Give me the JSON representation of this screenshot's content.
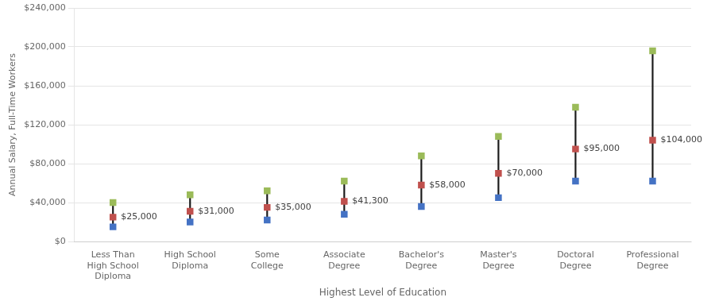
{
  "chart_data": {
    "type": "scatter",
    "categories": [
      "Less Than\nHigh School\nDiploma",
      "High School\nDiploma",
      "Some\nCollege",
      "Associate\nDegree",
      "Bachelor's\nDegree",
      "Master's\nDegree",
      "Doctoral\nDegree",
      "Professional\nDegree"
    ],
    "series": [
      {
        "color": "#9BBB59",
        "marker": "square",
        "values": [
          40000,
          48000,
          52000,
          62000,
          88000,
          108000,
          138000,
          196000
        ]
      },
      {
        "color": "#C0504D",
        "marker": "square",
        "values": [
          25000,
          31000,
          35000,
          41300,
          58000,
          70000,
          95000,
          104000
        ],
        "data_labels": true,
        "value_labels": [
          "$25,000",
          "$31,000",
          "$35,000",
          "$41,300",
          "$58,000",
          "$70,000",
          "$95,000",
          "$104,000"
        ]
      },
      {
        "color": "#4472C4",
        "marker": "square",
        "values": [
          15000,
          20000,
          22000,
          28000,
          36000,
          45000,
          62000,
          62000
        ]
      }
    ],
    "color": "#1a1a1a",
    "xlabel": "Highest Level of Education",
    "ylabel": "Annual Salary, Full-Time Workers",
    "ylim": [
      0,
      240000
    ],
    "yticks": [
      {
        "value": 0,
        "label": "$0"
      },
      {
        "value": 40000,
        "label": "$40,000"
      },
      {
        "value": 80000,
        "label": "$80,000"
      },
      {
        "value": 120000,
        "label": "$120,000"
      },
      {
        "value": 160000,
        "label": "$160,000"
      },
      {
        "value": 200000,
        "label": "$200,000"
      },
      {
        "value": 240000,
        "label": "$240,000"
      }
    ],
    "grid": true
  }
}
